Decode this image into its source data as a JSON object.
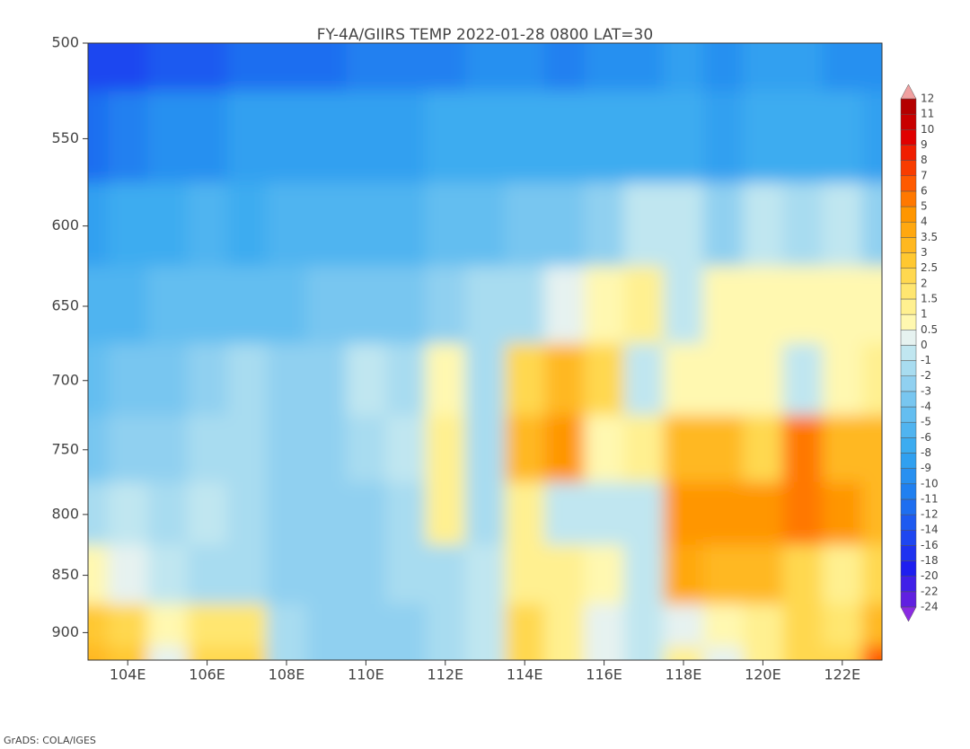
{
  "chart_data": {
    "type": "heatmap",
    "title": "FY-4A/GIIRS TEMP 2022-01-28 0800 LAT=30",
    "footer": "GrADS: COLA/IGES",
    "x": [
      103,
      104,
      105,
      106,
      107,
      108,
      109,
      110,
      111,
      112,
      113,
      114,
      115,
      116,
      117,
      118,
      119,
      120,
      121,
      122,
      123
    ],
    "y": [
      500,
      550,
      600,
      650,
      700,
      750,
      800,
      850,
      900,
      925
    ],
    "z": [
      [
        -16,
        -16,
        -14,
        -14,
        -12,
        -12,
        -12,
        -11,
        -11,
        -11,
        -10,
        -10,
        -11,
        -10,
        -10,
        -9,
        -10,
        -9,
        -9,
        -10,
        -10
      ],
      [
        -12,
        -11,
        -10,
        -10,
        -9,
        -9,
        -9,
        -9,
        -9,
        -8,
        -8,
        -8,
        -8,
        -8,
        -8,
        -8,
        -9,
        -8,
        -8,
        -8,
        -9
      ],
      [
        -9,
        -8,
        -8,
        -6,
        -8,
        -6,
        -6,
        -6,
        -6,
        -5,
        -5,
        -4,
        -4,
        -3,
        -1,
        -1,
        -3,
        -1,
        -2,
        -1,
        -3
      ],
      [
        -6,
        -6,
        -5,
        -5,
        -5,
        -5,
        -4,
        -4,
        -4,
        -3,
        -2,
        -2,
        0,
        0.5,
        1,
        -1,
        0.5,
        0.5,
        0.5,
        0.5,
        0.5
      ],
      [
        -5,
        -4,
        -4,
        -3,
        -2,
        -3,
        -3,
        -1,
        -2,
        0.5,
        -2,
        2,
        3,
        2,
        -1,
        0.5,
        0.5,
        0.5,
        -1,
        0.5,
        1
      ],
      [
        -4,
        -3,
        -3,
        -2,
        -2,
        -3,
        -3,
        -2,
        -1,
        1,
        -2,
        3,
        4,
        0.5,
        1,
        3,
        3,
        2,
        5,
        3,
        3
      ],
      [
        -2,
        -1,
        -2,
        -1,
        -2,
        -3,
        -3,
        -3,
        -2,
        1,
        -2,
        1,
        -1,
        -1,
        -1,
        4,
        4,
        4,
        5,
        4,
        3
      ],
      [
        0.5,
        0,
        -1,
        -2,
        -2,
        -3,
        -3,
        -3,
        -2,
        -2,
        -1,
        1,
        1,
        0.5,
        -1,
        3.5,
        3,
        3,
        2,
        1,
        2
      ],
      [
        2.5,
        2,
        0.5,
        1.5,
        1.5,
        -2,
        -3,
        -3,
        -3,
        -2,
        -1,
        2,
        1,
        0,
        -1,
        0,
        0.5,
        1,
        2,
        1.5,
        3
      ],
      [
        3,
        2.5,
        0,
        2,
        2,
        -2,
        -3,
        -3,
        -3,
        -2,
        -1,
        2,
        1,
        0,
        -1,
        1,
        0,
        1,
        2,
        2,
        6
      ]
    ],
    "xlim": [
      103,
      123
    ],
    "xticks": [
      {
        "value": 104,
        "label": "104E"
      },
      {
        "value": 106,
        "label": "106E"
      },
      {
        "value": 108,
        "label": "108E"
      },
      {
        "value": 110,
        "label": "110E"
      },
      {
        "value": 112,
        "label": "112E"
      },
      {
        "value": 114,
        "label": "114E"
      },
      {
        "value": 116,
        "label": "116E"
      },
      {
        "value": 118,
        "label": "118E"
      },
      {
        "value": 120,
        "label": "120E"
      },
      {
        "value": 122,
        "label": "122E"
      }
    ],
    "ylim": [
      925,
      500
    ],
    "yscale": "log",
    "yticks": [
      500,
      550,
      600,
      650,
      700,
      750,
      800,
      850,
      900
    ],
    "levels": [
      -24,
      -22,
      -20,
      -18,
      -16,
      -14,
      -12,
      -11,
      -10,
      -9,
      -8,
      -6,
      -5,
      -4,
      -3,
      -2,
      -1,
      0,
      0.5,
      1,
      1.5,
      2,
      2.5,
      3,
      3.5,
      4,
      5,
      6,
      7,
      8,
      9,
      10,
      11,
      12
    ],
    "colors": [
      "#8a2be2",
      "#6020e0",
      "#4020e8",
      "#1e1eef",
      "#1e32f0",
      "#1e46f0",
      "#1e5af0",
      "#1e6ef0",
      "#2080f0",
      "#2890f0",
      "#30a0f0",
      "#3cacf0",
      "#50b4f0",
      "#64bef0",
      "#78c6f0",
      "#90d0f0",
      "#a8dcf0",
      "#c0e6f0",
      "#e6f2f0",
      "#fff8b0",
      "#fff090",
      "#ffe670",
      "#ffd850",
      "#ffc830",
      "#ffb820",
      "#ffa810",
      "#ff9600",
      "#ff7800",
      "#ff5a00",
      "#f83c00",
      "#f01e00",
      "#e00000",
      "#c80000",
      "#b40000",
      "#f0a0a0"
    ]
  }
}
